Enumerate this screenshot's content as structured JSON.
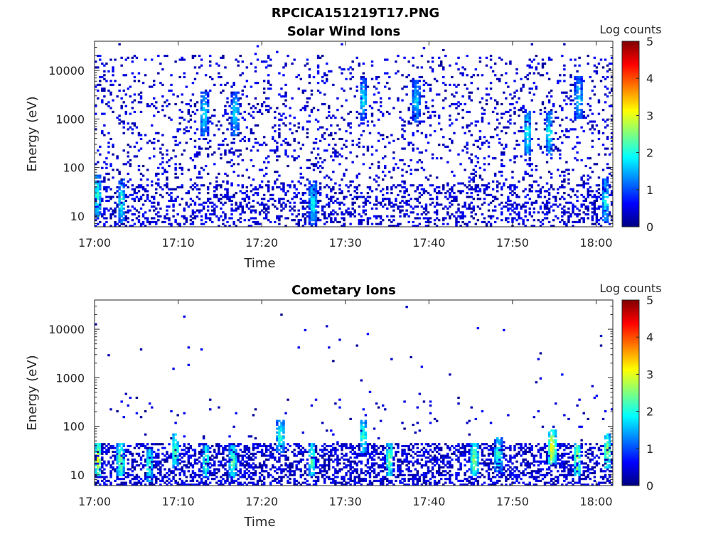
{
  "figure": {
    "title": "RPCICA151219T17.PNG"
  },
  "colormap": {
    "name": "jet",
    "stops": [
      "#00007f",
      "#0000ff",
      "#007fff",
      "#00ffff",
      "#7fff7f",
      "#ffff00",
      "#ff7f00",
      "#ff0000",
      "#7f0000"
    ]
  },
  "chart_data": [
    {
      "type": "heatmap",
      "title": "Solar Wind Ions",
      "xlabel": "Time",
      "ylabel": "Energy (eV)",
      "x_range_minutes": [
        0,
        62
      ],
      "x_ticks": [
        {
          "label": "17:00",
          "minutes": 0
        },
        {
          "label": "17:10",
          "minutes": 10
        },
        {
          "label": "17:20",
          "minutes": 20
        },
        {
          "label": "17:30",
          "minutes": 30
        },
        {
          "label": "17:40",
          "minutes": 40
        },
        {
          "label": "17:50",
          "minutes": 50
        },
        {
          "label": "18:00",
          "minutes": 60
        }
      ],
      "y_scale": "log",
      "y_range": [
        6,
        40000
      ],
      "y_ticks": [
        {
          "label": "10",
          "value": 10
        },
        {
          "label": "100",
          "value": 100
        },
        {
          "label": "1000",
          "value": 1000
        },
        {
          "label": "10000",
          "value": 10000
        }
      ],
      "colorbar": {
        "label": "Log counts",
        "range": [
          0,
          5
        ],
        "ticks": [
          {
            "label": "0",
            "value": 0
          },
          {
            "label": "1",
            "value": 1
          },
          {
            "label": "2",
            "value": 2
          },
          {
            "label": "3",
            "value": 3
          },
          {
            "label": "4",
            "value": 4
          },
          {
            "label": "5",
            "value": 5
          }
        ]
      },
      "hotspots": [
        {
          "t": 0.2,
          "e": 25,
          "v": 2.2
        },
        {
          "t": 3.1,
          "e": 20,
          "v": 1.9
        },
        {
          "t": 13.0,
          "e": 1200,
          "v": 1.8
        },
        {
          "t": 16.7,
          "e": 1200,
          "v": 1.8
        },
        {
          "t": 26.0,
          "e": 18,
          "v": 1.9
        },
        {
          "t": 32.0,
          "e": 2400,
          "v": 1.7
        },
        {
          "t": 38.4,
          "e": 2200,
          "v": 1.6
        },
        {
          "t": 51.7,
          "e": 500,
          "v": 2.0
        },
        {
          "t": 54.3,
          "e": 500,
          "v": 1.9
        },
        {
          "t": 57.8,
          "e": 2500,
          "v": 1.7
        },
        {
          "t": 61.0,
          "e": 20,
          "v": 1.9
        }
      ],
      "density": {
        "low_band": 0.5,
        "scatter": 0.11
      },
      "seed": 7
    },
    {
      "type": "heatmap",
      "title": "Cometary Ions",
      "xlabel": "Time",
      "ylabel": "Energy (eV)",
      "x_range_minutes": [
        0,
        62
      ],
      "x_ticks": [
        {
          "label": "17:00",
          "minutes": 0
        },
        {
          "label": "17:10",
          "minutes": 10
        },
        {
          "label": "17:20",
          "minutes": 20
        },
        {
          "label": "17:30",
          "minutes": 30
        },
        {
          "label": "17:40",
          "minutes": 40
        },
        {
          "label": "17:50",
          "minutes": 50
        },
        {
          "label": "18:00",
          "minutes": 60
        }
      ],
      "y_scale": "log",
      "y_range": [
        6,
        40000
      ],
      "y_ticks": [
        {
          "label": "10",
          "value": 10
        },
        {
          "label": "100",
          "value": 100
        },
        {
          "label": "1000",
          "value": 1000
        },
        {
          "label": "10000",
          "value": 10000
        }
      ],
      "colorbar": {
        "label": "Log counts",
        "range": [
          0,
          5
        ],
        "ticks": [
          {
            "label": "0",
            "value": 0
          },
          {
            "label": "1",
            "value": 1
          },
          {
            "label": "2",
            "value": 2
          },
          {
            "label": "3",
            "value": 3
          },
          {
            "label": "4",
            "value": 4
          },
          {
            "label": "5",
            "value": 5
          }
        ]
      },
      "hotspots": [
        {
          "t": 0.3,
          "e": 20,
          "v": 3.0
        },
        {
          "t": 3.0,
          "e": 20,
          "v": 2.6
        },
        {
          "t": 6.4,
          "e": 15,
          "v": 2.2
        },
        {
          "t": 9.5,
          "e": 30,
          "v": 2.4
        },
        {
          "t": 13.2,
          "e": 18,
          "v": 2.2
        },
        {
          "t": 16.4,
          "e": 18,
          "v": 2.4
        },
        {
          "t": 22.1,
          "e": 60,
          "v": 2.2
        },
        {
          "t": 25.9,
          "e": 20,
          "v": 2.3
        },
        {
          "t": 32.0,
          "e": 60,
          "v": 2.1
        },
        {
          "t": 35.2,
          "e": 20,
          "v": 2.4
        },
        {
          "t": 45.3,
          "e": 20,
          "v": 2.6
        },
        {
          "t": 48.2,
          "e": 25,
          "v": 2.2
        },
        {
          "t": 54.6,
          "e": 35,
          "v": 3.4
        },
        {
          "t": 57.6,
          "e": 20,
          "v": 2.8
        },
        {
          "t": 61.2,
          "e": 30,
          "v": 2.6
        }
      ],
      "density": {
        "low_band": 0.45,
        "scatter": 0.012
      },
      "seed": 11
    }
  ]
}
